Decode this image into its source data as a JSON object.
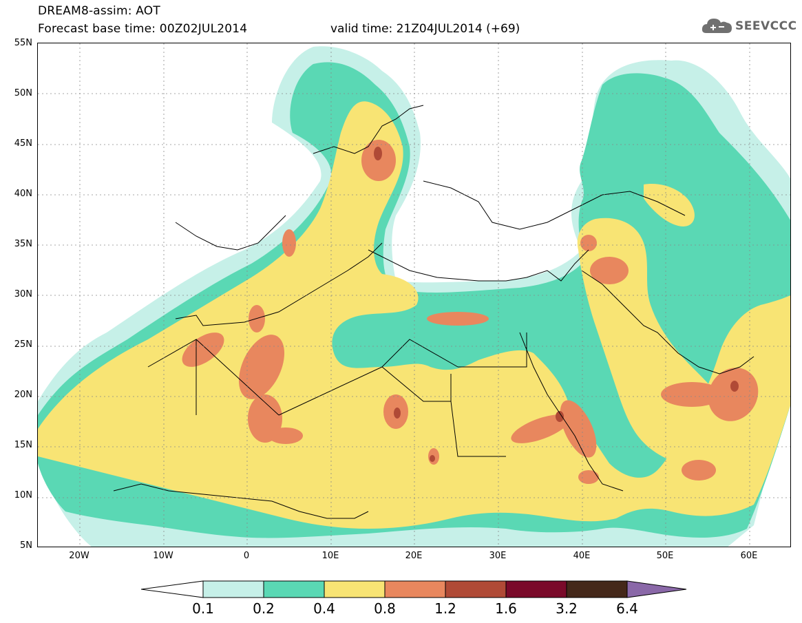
{
  "title": {
    "line1": "DREAM8-assim: AOT",
    "line2": "Forecast base time: 00Z02JUL2014",
    "valid": "valid time: 21Z04JUL2014 (+69)"
  },
  "logo": {
    "text": "SEEVCCC",
    "icon": "cloud-icon"
  },
  "map": {
    "lon_range": [
      -25,
      65
    ],
    "lat_range": [
      5,
      55
    ],
    "lat_ticks": [
      "55N",
      "50N",
      "45N",
      "40N",
      "35N",
      "30N",
      "25N",
      "20N",
      "15N",
      "10N",
      "5N"
    ],
    "lon_ticks": [
      "20W",
      "10W",
      "0",
      "10E",
      "20E",
      "30E",
      "40E",
      "50E",
      "60E"
    ],
    "grid": "dotted"
  },
  "colorbar": {
    "labels": [
      "0.1",
      "0.2",
      "0.4",
      "0.8",
      "1.2",
      "1.6",
      "3.2",
      "6.4"
    ],
    "colors": [
      "#c6f0e8",
      "#5ad8b4",
      "#f8e474",
      "#e8875e",
      "#b04a36",
      "#7a0a2a",
      "#44281a",
      "#8a68a8"
    ]
  }
}
